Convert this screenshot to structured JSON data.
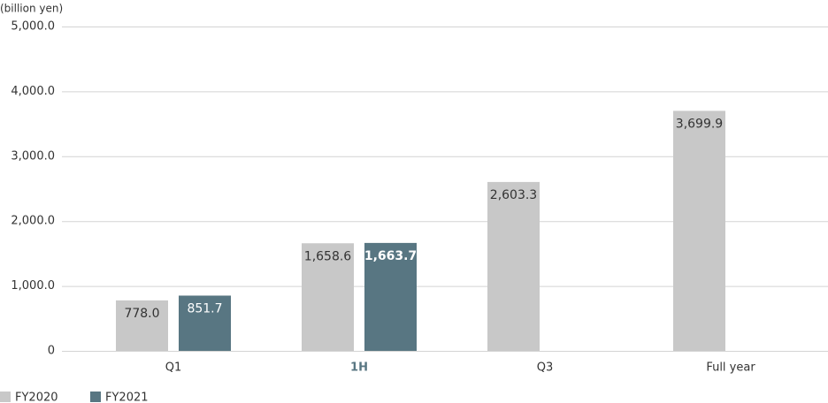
{
  "chart_data": {
    "type": "bar",
    "y_axis_label": "(billion yen)",
    "categories": [
      "Q1",
      "1H",
      "Q3",
      "Full year"
    ],
    "highlight_index": 1,
    "series": [
      {
        "name": "FY2020",
        "color": "#c8c8c8",
        "values": [
          778.0,
          1658.6,
          2603.3,
          3699.9
        ],
        "value_labels": [
          "778.0",
          "1,658.6",
          "2,603.3",
          "3,699.9"
        ]
      },
      {
        "name": "FY2021",
        "color": "#587682",
        "values": [
          851.7,
          1663.7,
          null,
          null
        ],
        "value_labels": [
          "851.7",
          "1,663.7",
          null,
          null
        ]
      }
    ],
    "ylim": [
      0,
      5000
    ],
    "yticks": [
      0,
      {
        "value": 1000,
        "label": "1,000.0"
      },
      {
        "value": 2000,
        "label": "2,000.0"
      },
      {
        "value": 3000,
        "label": "3,000.0"
      },
      {
        "value": 4000,
        "label": "4,000.0"
      },
      {
        "value": 5000,
        "label": "5,000.0"
      }
    ],
    "grid": true
  }
}
